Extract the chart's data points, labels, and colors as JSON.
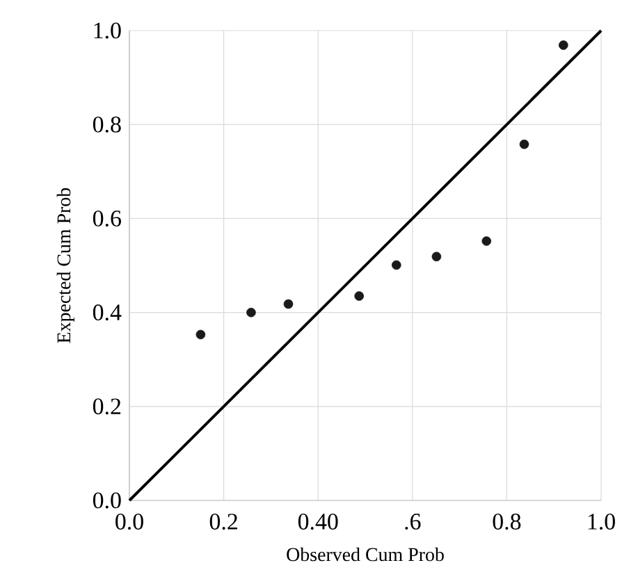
{
  "chart_data": {
    "type": "scatter",
    "xlabel": "Observed Cum Prob",
    "ylabel": "Expected Cum Prob",
    "xlim": [
      0,
      1
    ],
    "ylim": [
      0,
      1
    ],
    "xticks": [
      {
        "value": 0,
        "label": "0.0"
      },
      {
        "value": 0.2,
        "label": "0.2"
      },
      {
        "value": 0.4,
        "label": "0.40"
      },
      {
        "value": 0.6,
        "label": ".6"
      },
      {
        "value": 0.8,
        "label": "0.8"
      },
      {
        "value": 1,
        "label": "1.0"
      }
    ],
    "yticks": [
      {
        "value": 0,
        "label": "0.0"
      },
      {
        "value": 0.2,
        "label": "0.2"
      },
      {
        "value": 0.4,
        "label": "0.4"
      },
      {
        "value": 0.6,
        "label": "0.6"
      },
      {
        "value": 0.8,
        "label": "0.8"
      },
      {
        "value": 1,
        "label": "1.0"
      }
    ],
    "grid": true,
    "marker": "circle",
    "series": [
      {
        "color": "#1a1a1a",
        "x": [
          0.151,
          0.258,
          0.337,
          0.487,
          0.566,
          0.651,
          0.757,
          0.837,
          0.92
        ],
        "values": [
          0.353,
          0.4,
          0.418,
          0.435,
          0.501,
          0.519,
          0.552,
          0.758,
          0.969
        ]
      },
      {
        "type": "line",
        "color": "#000000",
        "marker": "none",
        "x": [
          0,
          1
        ],
        "values": [
          0,
          1
        ]
      }
    ]
  }
}
